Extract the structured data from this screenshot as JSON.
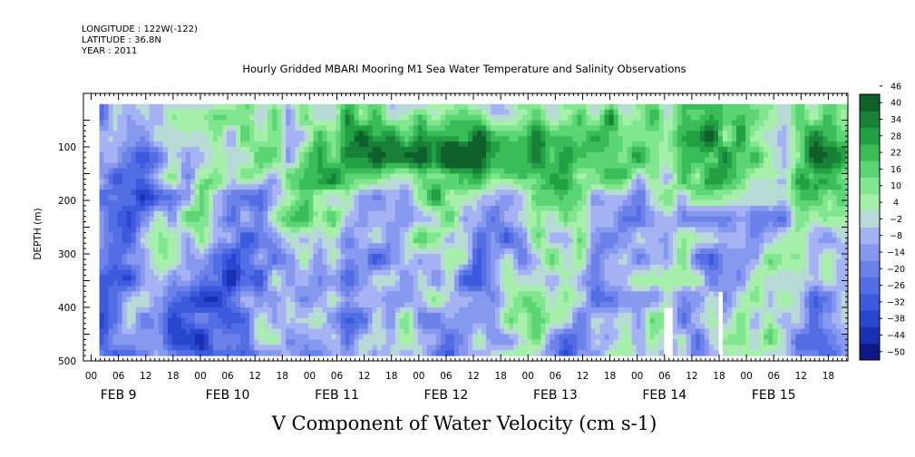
{
  "header": {
    "longitude": "LONGITUDE : 122W(-122)",
    "latitude": "LATITUDE : 36.8N",
    "year": "YEAR : 2011"
  },
  "chart_data": {
    "type": "heatmap",
    "title": "Hourly Gridded MBARI Mooring M1 Sea Water Temperature and Salinity Observations",
    "xlabel": "V Component of Water Velocity (cm s-1)",
    "ylabel": "DEPTH (m)",
    "xlim_hours": [
      0,
      168
    ],
    "ylim": [
      500,
      0
    ],
    "y_ticks": [
      100,
      200,
      300,
      400,
      500
    ],
    "hour_tick_labels": [
      "00",
      "06",
      "12",
      "18"
    ],
    "day_labels": [
      "FEB  9",
      "FEB 10",
      "FEB 11",
      "FEB 12",
      "FEB 13",
      "FEB 14",
      "FEB 15"
    ],
    "colorbar": {
      "levels": [
        -50,
        -44,
        -38,
        -32,
        -26,
        -20,
        -14,
        -8,
        -2,
        4,
        10,
        16,
        22,
        28,
        34,
        40,
        46
      ],
      "labels": [
        "46",
        "40",
        "34",
        "28",
        "22",
        "16",
        "10",
        "4",
        "-2",
        "-8",
        "-14",
        "-20",
        "-26",
        "-32",
        "-38",
        "-44",
        "-50"
      ],
      "colors": {
        "deep_negative": "#0b0b7a",
        "mid_negative": "#6f84e6",
        "near_zero_negative": "#aab4f2",
        "near_zero_positive": "#a8f0a8",
        "mid_positive": "#4fd36a",
        "deep_positive": "#0b5a22"
      }
    },
    "data_extent": {
      "time_start_hours": 3.5,
      "depth_top": 20,
      "depth_bottom": 485
    },
    "cells_description": "southward (blue, ~-8 to -32) dominates below ~250 m and on FEB 9; northward (green, ~4 to 22) dominates above ~150 m from FEB 11 onward, strongest near 100 m on FEB 12"
  }
}
